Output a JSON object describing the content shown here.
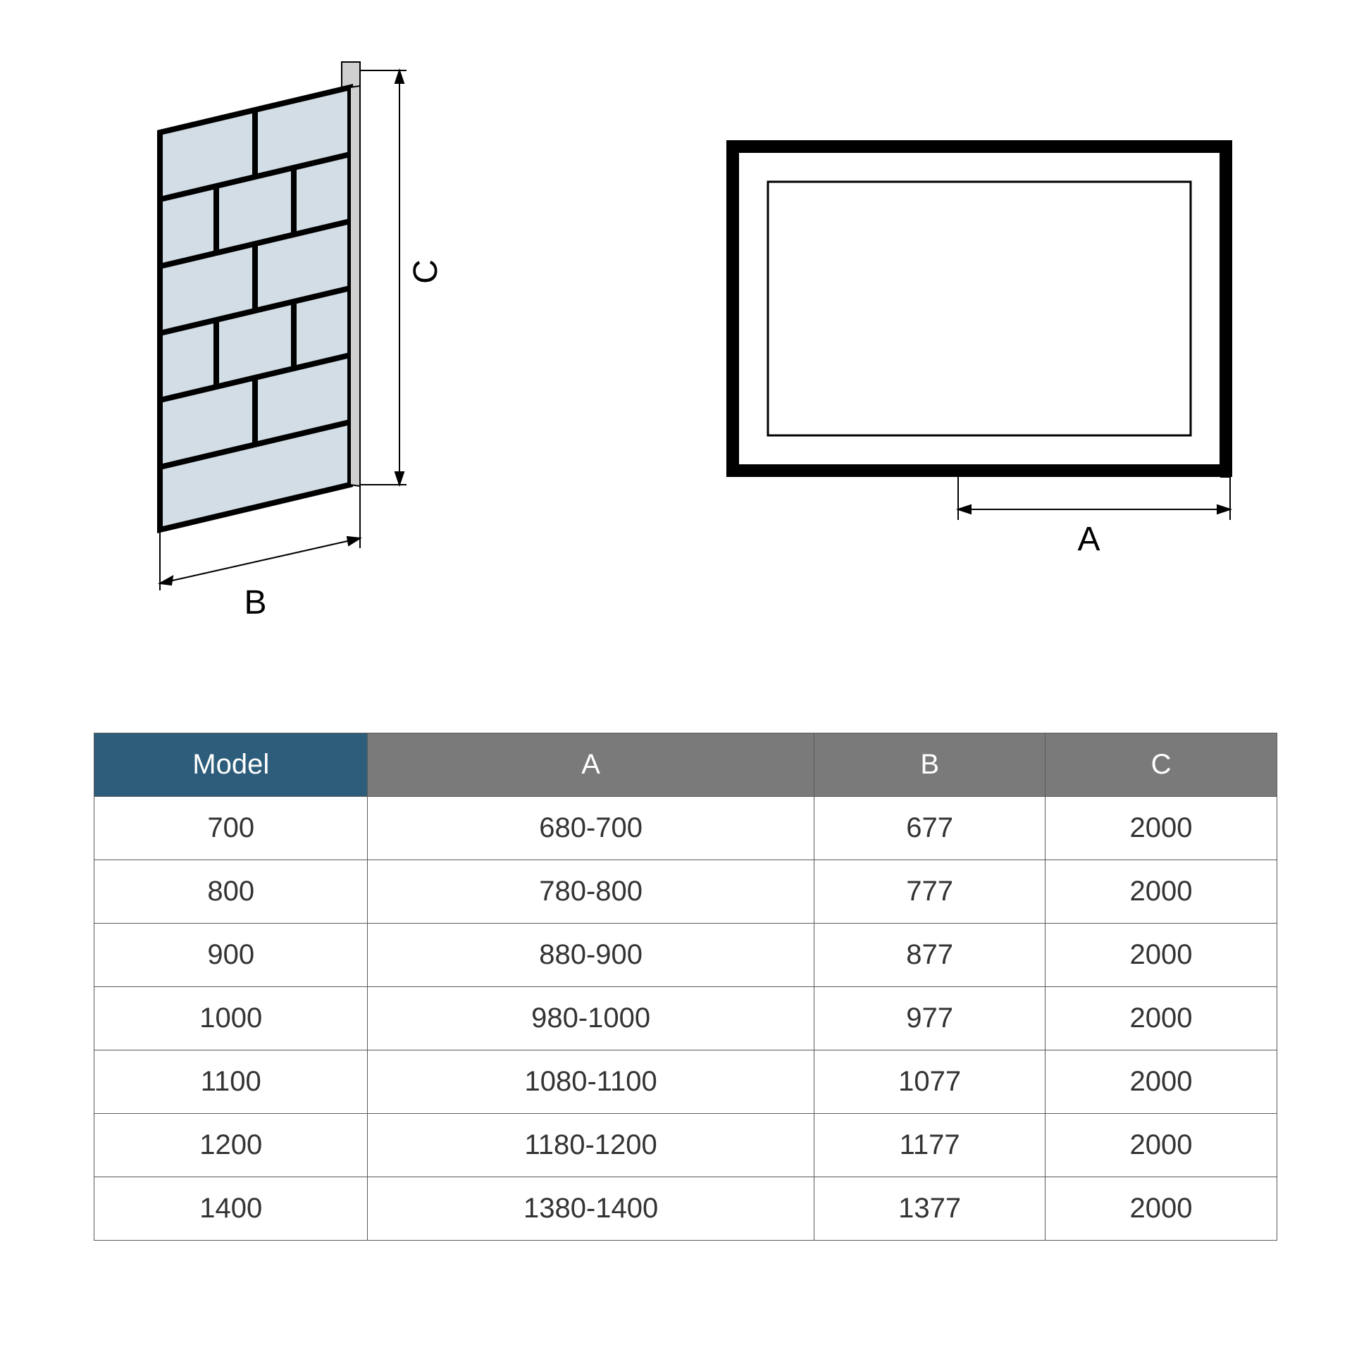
{
  "diagrams": {
    "left": {
      "label_B": "B",
      "label_C": "C",
      "panel_fill": "#d2dde5",
      "frame_color": "#000000",
      "profile_fill": "#cfcfcf",
      "arrow_color": "#000000"
    },
    "right": {
      "label_A": "A",
      "outer_border_color": "#000000",
      "inner_border_color": "#000000",
      "arrow_color": "#000000"
    }
  },
  "table": {
    "columns": [
      "Model",
      "A",
      "B",
      "C"
    ],
    "header_colors": {
      "model": "#2d5d7b",
      "dim": "#7a7a7a"
    },
    "border_color": "#5a5a5a",
    "text_color": "#333333",
    "font_size": 40,
    "rows": [
      [
        "700",
        "680-700",
        "677",
        "2000"
      ],
      [
        "800",
        "780-800",
        "777",
        "2000"
      ],
      [
        "900",
        "880-900",
        "877",
        "2000"
      ],
      [
        "1000",
        "980-1000",
        "977",
        "2000"
      ],
      [
        "1100",
        "1080-1100",
        "1077",
        "2000"
      ],
      [
        "1200",
        "1180-1200",
        "1177",
        "2000"
      ],
      [
        "1400",
        "1380-1400",
        "1377",
        "2000"
      ]
    ]
  }
}
